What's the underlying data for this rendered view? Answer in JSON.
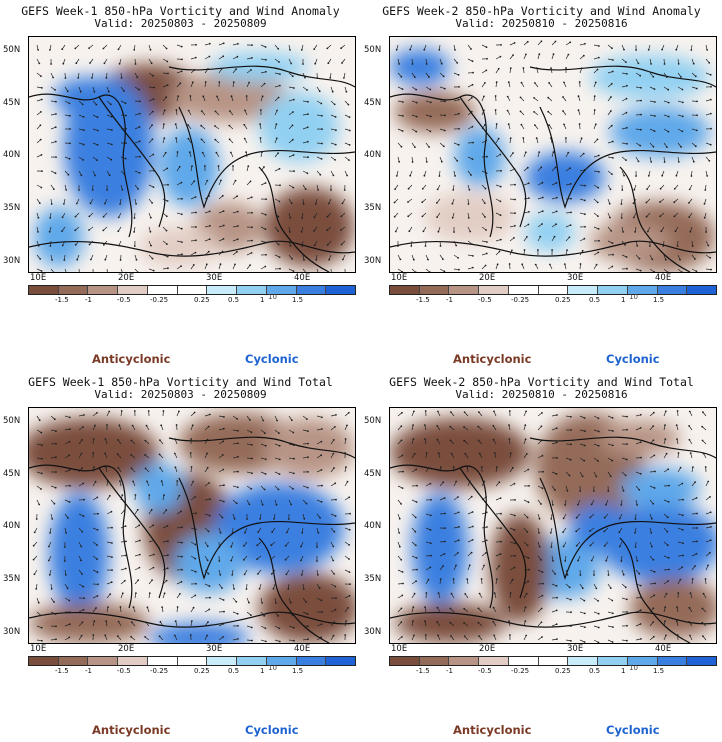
{
  "colors": {
    "anticyclonic_text": "#7a3a26",
    "cyclonic_text": "#1e64d0",
    "colorbar": [
      "#7a4e3c",
      "#946b58",
      "#b79485",
      "#e2cdc4",
      "#ffffff",
      "#ffffff",
      "#c8ecfa",
      "#92d0f2",
      "#5fa8ea",
      "#3a7fe0",
      "#1f62d6"
    ]
  },
  "lat_labels": [
    "50N",
    "45N",
    "40N",
    "35N",
    "30N"
  ],
  "lon_labels": [
    "10E",
    "20E",
    "30E",
    "40E"
  ],
  "colorbar_ticks": [
    "-1.5",
    "-1",
    "-0.5",
    "-0.25",
    "0.25",
    "0.5",
    "1",
    "1.5"
  ],
  "colorbar_unit": "10",
  "legend": {
    "anticyclonic": "Anticyclonic",
    "cyclonic": "Cyclonic"
  },
  "panels": [
    {
      "title": "GEFS Week-1 850-hPa Vorticity and Wind Anomaly",
      "valid": "Valid: 20250803 - 20250809"
    },
    {
      "title": "GEFS Week-2 850-hPa Vorticity and Wind Anomaly",
      "valid": "Valid: 20250810 - 20250816"
    },
    {
      "title": "GEFS Week-1 850-hPa Vorticity and Wind Total",
      "valid": "Valid: 20250803 - 20250809"
    },
    {
      "title": "GEFS Week-2 850-hPa Vorticity and Wind Total",
      "valid": "Valid: 20250810 - 20250816"
    }
  ]
}
